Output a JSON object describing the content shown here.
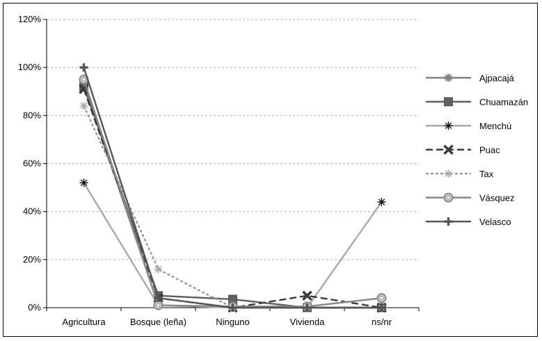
{
  "chart_data": {
    "type": "line",
    "title": "",
    "xlabel": "",
    "ylabel": "",
    "categories": [
      "Agricultura",
      "Bosque (leña)",
      "Ninguno",
      "Vivienda",
      "ns/nr"
    ],
    "ylim": [
      0,
      120
    ],
    "yticks": [
      0,
      20,
      40,
      60,
      80,
      100,
      120
    ],
    "ytick_labels": [
      "0%",
      "20%",
      "40%",
      "60%",
      "80%",
      "100%",
      "120%"
    ],
    "grid": "horizontal dashed",
    "legend": "right",
    "series": [
      {
        "name": "Ajpacajá",
        "values": [
          93,
          1,
          0,
          0,
          0
        ],
        "color": "#808080",
        "dash": "solid",
        "marker": "starburst-icon"
      },
      {
        "name": "Chuamazán",
        "values": [
          92,
          5,
          3.5,
          0,
          0
        ],
        "color": "#606060",
        "dash": "solid",
        "marker": "square-icon"
      },
      {
        "name": "Menchú",
        "values": [
          52,
          1,
          0,
          0,
          44
        ],
        "color": "#a8a8a8",
        "dash": "solid",
        "marker": "asterisk-icon"
      },
      {
        "name": "Puac",
        "values": [
          91,
          4,
          0,
          5,
          0
        ],
        "color": "#3a3a3a",
        "dash": "long-dash",
        "marker": "x-icon"
      },
      {
        "name": "Tax",
        "values": [
          84,
          16,
          0,
          0,
          0
        ],
        "color": "#999999",
        "dash": "short-dash",
        "marker": "snowflake-icon"
      },
      {
        "name": "Vásquez",
        "values": [
          95,
          1,
          0.5,
          0.5,
          4
        ],
        "color": "#888888",
        "dash": "solid",
        "marker": "ring-icon"
      },
      {
        "name": "Velasco",
        "values": [
          100,
          4,
          0,
          0,
          0
        ],
        "color": "#555555",
        "dash": "solid",
        "marker": "plus-icon"
      }
    ]
  }
}
